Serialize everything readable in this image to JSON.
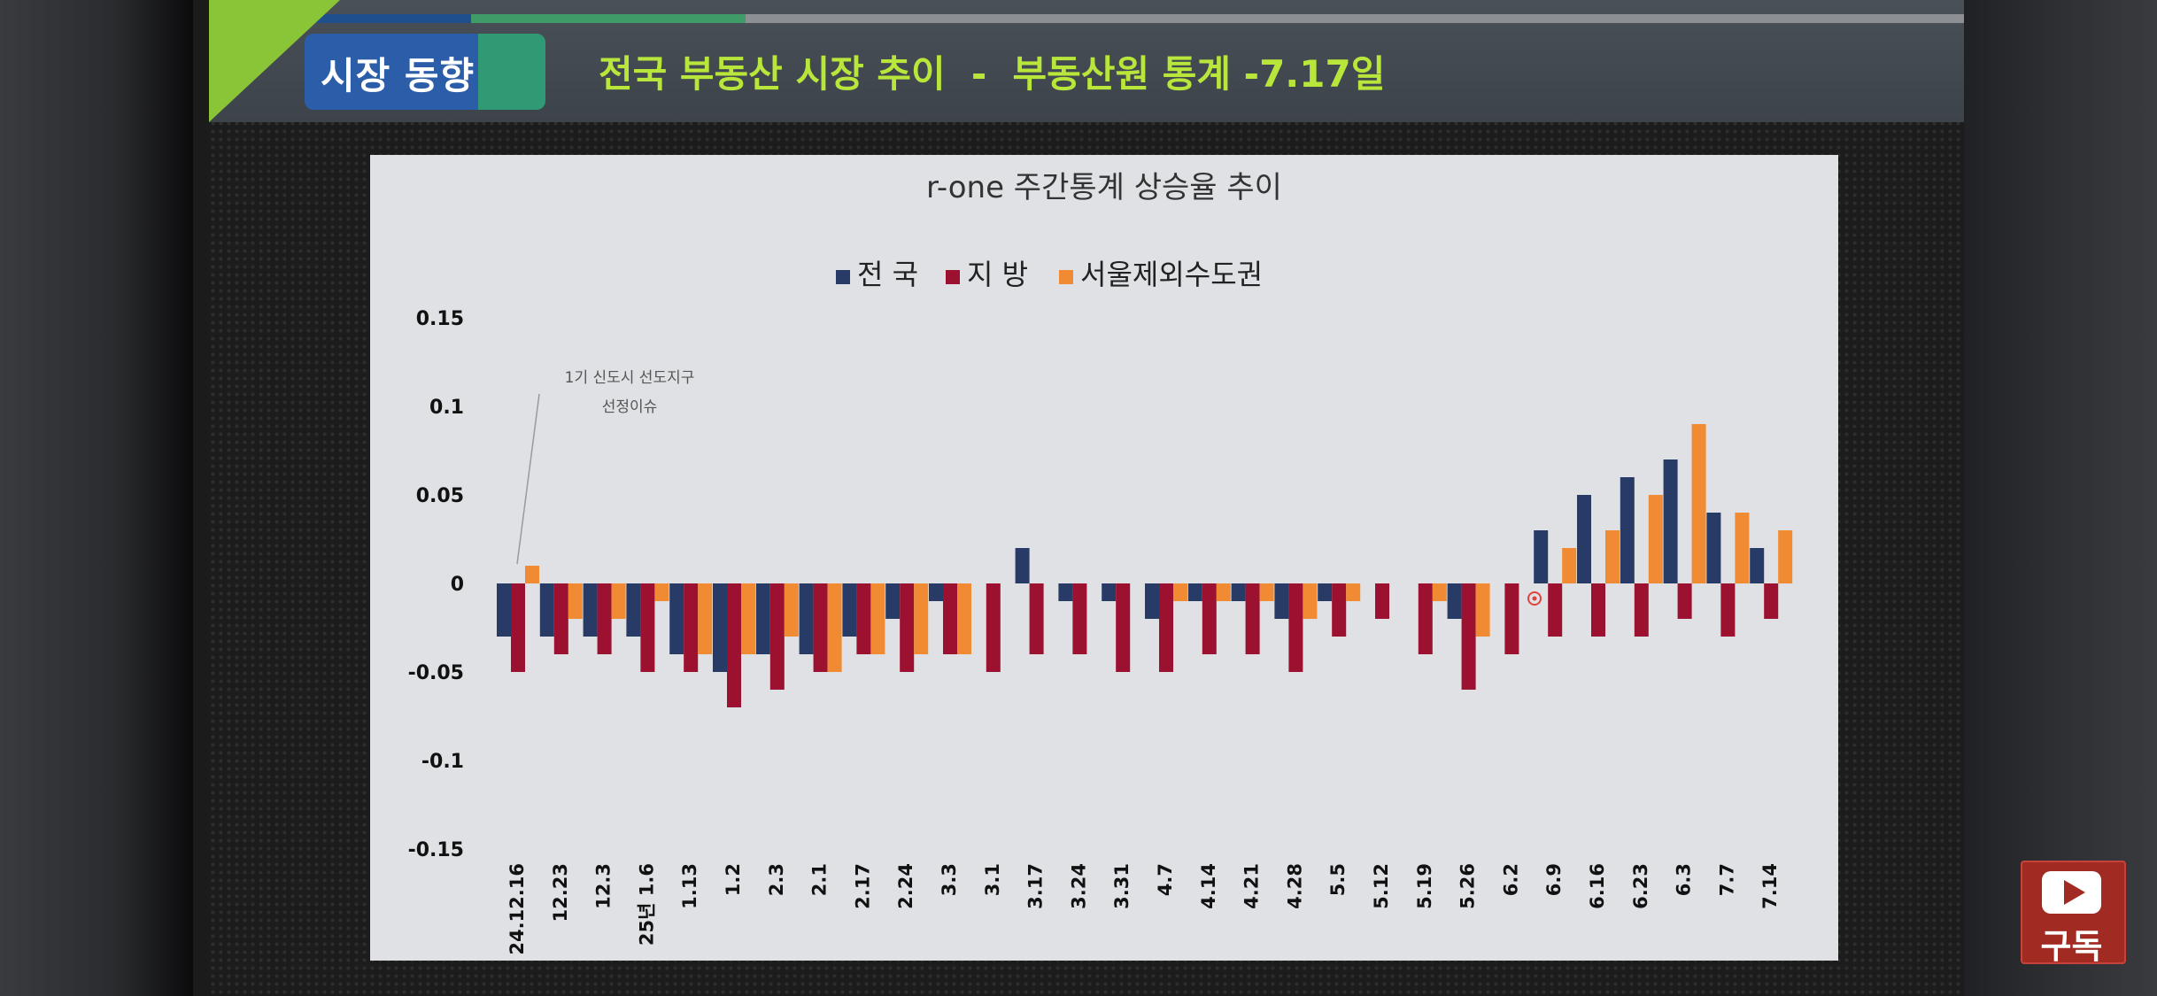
{
  "slide": {
    "badge": "시장 동향",
    "title": "전국 부동산 시장 추이  -  부동산원 통계 -7.17일"
  },
  "subscribe": {
    "label": "구독",
    "icon": "youtube-play-icon"
  },
  "colors": {
    "national": "#283a66",
    "regional": "#9c1030",
    "metro": "#f08a33",
    "accent": "#b8e63b"
  },
  "chart_data": {
    "type": "bar",
    "title": "r-one  주간통계 상승율 추이",
    "xlabel": "",
    "ylabel": "",
    "ylim": [
      -0.15,
      0.15
    ],
    "yticks": [
      "0.15",
      "0.1",
      "0.05",
      "0",
      "-0.05",
      "-0.1",
      "-0.15"
    ],
    "legend_position": "top-center",
    "categories": [
      "24.12.16",
      "12.23",
      "12.3",
      "25년 1.6",
      "1.13",
      "1.2",
      "2.3",
      "2.1",
      "2.17",
      "2.24",
      "3.3",
      "3.1",
      "3.17",
      "3.24",
      "3.31",
      "4.7",
      "4.14",
      "4.21",
      "4.28",
      "5.5",
      "5.12",
      "5.19",
      "5.26",
      "6.2",
      "6.9",
      "6.16",
      "6.23",
      "6.3",
      "7.7",
      "7.14"
    ],
    "series": [
      {
        "name": "전 국",
        "values": [
          -0.03,
          -0.03,
          -0.03,
          -0.03,
          -0.04,
          -0.05,
          -0.04,
          -0.04,
          -0.03,
          -0.02,
          -0.01,
          0,
          0.02,
          -0.01,
          -0.01,
          -0.02,
          -0.01,
          -0.01,
          -0.02,
          -0.01,
          0,
          0,
          -0.02,
          0,
          0.03,
          0.05,
          0.06,
          0.07,
          0.04,
          0.02
        ]
      },
      {
        "name": "지 방",
        "values": [
          -0.05,
          -0.04,
          -0.04,
          -0.05,
          -0.05,
          -0.07,
          -0.06,
          -0.05,
          -0.04,
          -0.05,
          -0.04,
          -0.05,
          -0.04,
          -0.04,
          -0.05,
          -0.05,
          -0.04,
          -0.04,
          -0.05,
          -0.03,
          -0.02,
          -0.04,
          -0.06,
          -0.04,
          -0.03,
          -0.03,
          -0.03,
          -0.02,
          -0.03,
          -0.02
        ]
      },
      {
        "name": "서울제외수도권",
        "values": [
          0.01,
          -0.02,
          -0.02,
          -0.01,
          -0.04,
          -0.04,
          -0.03,
          -0.05,
          -0.04,
          -0.04,
          -0.04,
          0,
          0,
          0,
          0,
          -0.01,
          -0.01,
          -0.01,
          -0.02,
          -0.01,
          0,
          -0.01,
          -0.03,
          0,
          0.02,
          0.03,
          0.05,
          0.09,
          0.04,
          0.03
        ]
      }
    ],
    "annotation": {
      "line1": "1기 신도시 선도지구",
      "line2": "선정이슈"
    }
  }
}
